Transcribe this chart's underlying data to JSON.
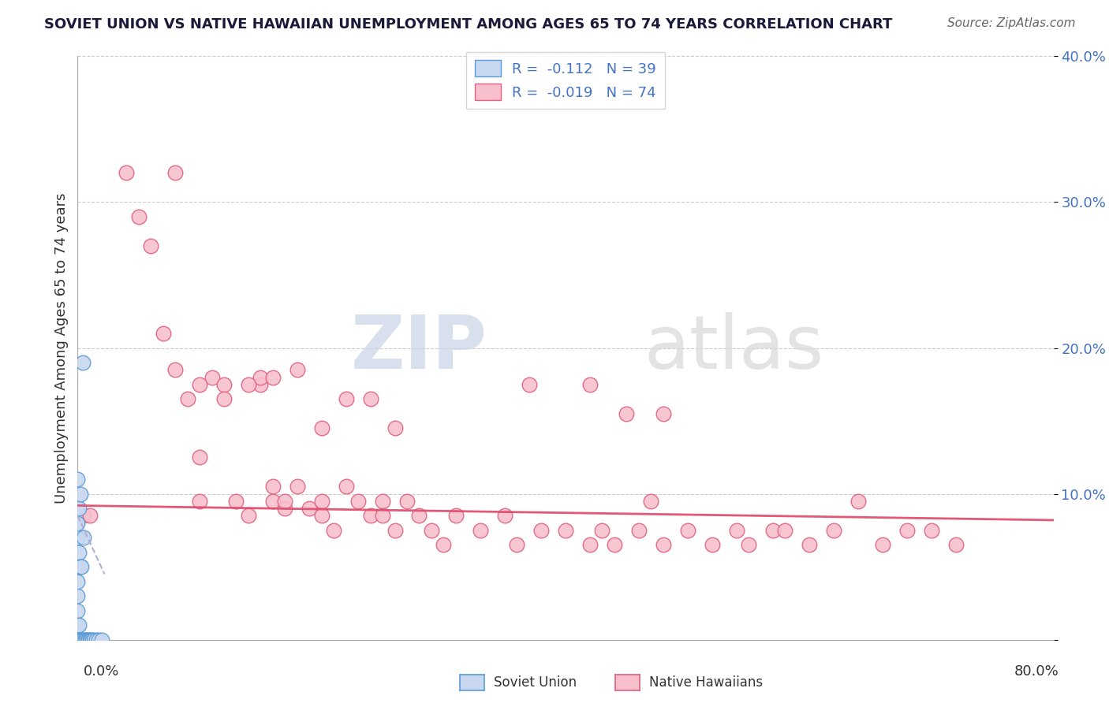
{
  "title": "SOVIET UNION VS NATIVE HAWAIIAN UNEMPLOYMENT AMONG AGES 65 TO 74 YEARS CORRELATION CHART",
  "source": "Source: ZipAtlas.com",
  "ylabel": "Unemployment Among Ages 65 to 74 years",
  "legend_label1": "Soviet Union",
  "legend_label2": "Native Hawaiians",
  "R1": -0.112,
  "N1": 39,
  "R2": -0.019,
  "N2": 74,
  "color1_face": "#c8d8f0",
  "color1_edge": "#5b9bd5",
  "color2_face": "#f8c0cc",
  "color2_edge": "#e06080",
  "trendline1_color": "#aaaacc",
  "trendline2_color": "#e05070",
  "background_color": "#ffffff",
  "grid_color": "#cccccc",
  "title_color": "#1a1a3a",
  "axis_label_color": "#4472c4",
  "watermark_color": "#d0d8e8",
  "xlim": [
    0.0,
    0.8
  ],
  "ylim": [
    0.0,
    0.4
  ],
  "yticks": [
    0.0,
    0.1,
    0.2,
    0.3,
    0.4
  ],
  "ytick_labels": [
    "",
    "10.0%",
    "20.0%",
    "30.0%",
    "40.0%"
  ],
  "soviet_x": [
    0.0,
    0.0,
    0.0,
    0.0,
    0.0,
    0.0,
    0.0,
    0.0,
    0.0,
    0.0,
    0.0,
    0.0,
    0.0,
    0.0,
    0.0,
    0.001,
    0.001,
    0.001,
    0.001,
    0.002,
    0.002,
    0.002,
    0.003,
    0.003,
    0.004,
    0.004,
    0.005,
    0.005,
    0.006,
    0.007,
    0.008,
    0.009,
    0.01,
    0.011,
    0.012,
    0.013,
    0.015,
    0.017,
    0.02
  ],
  "soviet_y": [
    0.0,
    0.0,
    0.0,
    0.0,
    0.0,
    0.0,
    0.01,
    0.02,
    0.03,
    0.04,
    0.05,
    0.07,
    0.08,
    0.09,
    0.11,
    0.0,
    0.01,
    0.06,
    0.09,
    0.0,
    0.05,
    0.1,
    0.0,
    0.05,
    0.0,
    0.19,
    0.0,
    0.07,
    0.0,
    0.0,
    0.0,
    0.0,
    0.0,
    0.0,
    0.0,
    0.0,
    0.0,
    0.0,
    0.0
  ],
  "native_x": [
    0.005,
    0.01,
    0.04,
    0.05,
    0.06,
    0.07,
    0.08,
    0.09,
    0.1,
    0.1,
    0.11,
    0.12,
    0.13,
    0.14,
    0.15,
    0.15,
    0.16,
    0.16,
    0.17,
    0.17,
    0.18,
    0.19,
    0.2,
    0.2,
    0.21,
    0.22,
    0.23,
    0.24,
    0.25,
    0.25,
    0.26,
    0.27,
    0.28,
    0.29,
    0.3,
    0.31,
    0.33,
    0.35,
    0.36,
    0.38,
    0.4,
    0.42,
    0.43,
    0.44,
    0.46,
    0.47,
    0.48,
    0.5,
    0.52,
    0.54,
    0.55,
    0.57,
    0.58,
    0.6,
    0.62,
    0.64,
    0.66,
    0.68,
    0.7,
    0.72,
    0.08,
    0.1,
    0.12,
    0.14,
    0.16,
    0.18,
    0.2,
    0.22,
    0.24,
    0.26,
    0.37,
    0.42,
    0.45,
    0.48
  ],
  "native_y": [
    0.085,
    0.085,
    0.32,
    0.29,
    0.27,
    0.21,
    0.185,
    0.165,
    0.125,
    0.095,
    0.18,
    0.175,
    0.095,
    0.085,
    0.175,
    0.18,
    0.105,
    0.095,
    0.09,
    0.095,
    0.105,
    0.09,
    0.095,
    0.085,
    0.075,
    0.105,
    0.095,
    0.085,
    0.095,
    0.085,
    0.075,
    0.095,
    0.085,
    0.075,
    0.065,
    0.085,
    0.075,
    0.085,
    0.065,
    0.075,
    0.075,
    0.065,
    0.075,
    0.065,
    0.075,
    0.095,
    0.065,
    0.075,
    0.065,
    0.075,
    0.065,
    0.075,
    0.075,
    0.065,
    0.075,
    0.095,
    0.065,
    0.075,
    0.075,
    0.065,
    0.32,
    0.175,
    0.165,
    0.175,
    0.18,
    0.185,
    0.145,
    0.165,
    0.165,
    0.145,
    0.175,
    0.175,
    0.155,
    0.155
  ],
  "trend1_x0": 0.0,
  "trend1_x1": 0.022,
  "trend1_y0": 0.085,
  "trend1_y1": 0.045,
  "trend2_x0": 0.0,
  "trend2_x1": 0.8,
  "trend2_y0": 0.092,
  "trend2_y1": 0.082
}
